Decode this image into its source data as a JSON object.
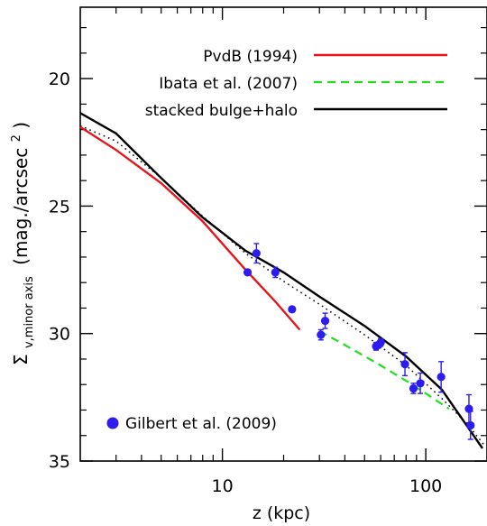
{
  "chart_data": {
    "type": "line",
    "xlabel": "z (kpc)",
    "ylabel_parts": {
      "sigma": "Σ",
      "subscript": "v,minor axis",
      "units_pre": "(mag./arcsec",
      "units_exp": "2",
      "units_post": ")"
    },
    "xscale": "log",
    "xlim": [
      2,
      200
    ],
    "ylim": [
      35,
      17.2
    ],
    "y_inverted": true,
    "x_major_ticks": [
      10,
      100
    ],
    "x_major_labels": [
      "10",
      "100"
    ],
    "x_minor_ticks": [
      2,
      3,
      4,
      5,
      6,
      7,
      8,
      9,
      20,
      30,
      40,
      50,
      60,
      70,
      80,
      90,
      200
    ],
    "y_major_ticks": [
      20,
      25,
      30,
      35
    ],
    "y_major_labels": [
      "20",
      "25",
      "30",
      "35"
    ],
    "y_minor_step": 1,
    "grid": false,
    "legend_position": "top-right",
    "series": [
      {
        "name": "PvdB (1994)",
        "style": "solid",
        "color": "#e8141c",
        "x": [
          2.0,
          3.0,
          5.0,
          8.0,
          13.0,
          18.0,
          24.0
        ],
        "y": [
          21.9,
          22.8,
          24.1,
          25.6,
          27.5,
          28.7,
          29.85
        ]
      },
      {
        "name": "Ibata et al. (2007)",
        "style": "dashed",
        "color": "#22dd22",
        "x": [
          30,
          40,
          60,
          80,
          100,
          130
        ],
        "y": [
          29.9,
          30.45,
          31.25,
          31.85,
          32.35,
          32.95
        ]
      },
      {
        "name": "stacked bulge+halo",
        "style": "solid",
        "color": "#000000",
        "x": [
          2.0,
          3.0,
          5.0,
          8.0,
          13.0,
          20.0,
          30.0,
          50.0,
          80.0,
          120.0,
          190.0
        ],
        "y": [
          21.35,
          22.15,
          23.9,
          25.45,
          26.75,
          27.6,
          28.55,
          29.7,
          30.9,
          32.2,
          34.5
        ]
      }
    ],
    "model_curve": {
      "style": "dotted",
      "color": "#000000",
      "x": [
        2.0,
        3.0,
        5.0,
        8.0,
        13.0,
        20.0,
        30.0,
        50.0,
        80.0,
        120.0,
        160.0,
        195.0
      ],
      "y": [
        21.85,
        22.45,
        23.9,
        25.4,
        26.85,
        27.95,
        28.85,
        30.05,
        31.25,
        32.55,
        33.55,
        34.4
      ]
    },
    "points": {
      "name": "Gilbert et al. (2009)",
      "color": "#2d1cf0",
      "data": [
        {
          "x": 13.3,
          "y": 27.6,
          "err": 0.0
        },
        {
          "x": 14.7,
          "y": 26.85,
          "err": 0.38
        },
        {
          "x": 18.2,
          "y": 27.6,
          "err": 0.2
        },
        {
          "x": 22.0,
          "y": 29.05,
          "err": 0.0
        },
        {
          "x": 30.5,
          "y": 30.05,
          "err": 0.2
        },
        {
          "x": 32.0,
          "y": 29.5,
          "err": 0.3
        },
        {
          "x": 57.0,
          "y": 30.5,
          "err": 0.15
        },
        {
          "x": 58.5,
          "y": 30.45,
          "err": 0.12
        },
        {
          "x": 60.0,
          "y": 30.35,
          "err": 0.15
        },
        {
          "x": 79.0,
          "y": 31.2,
          "err": 0.45
        },
        {
          "x": 87.0,
          "y": 32.15,
          "err": 0.2
        },
        {
          "x": 94.0,
          "y": 31.95,
          "err": 0.4
        },
        {
          "x": 119.0,
          "y": 31.7,
          "err": 0.6
        },
        {
          "x": 163.0,
          "y": 32.95,
          "err": 0.55
        },
        {
          "x": 166.0,
          "y": 33.6,
          "err": 0.55
        }
      ]
    }
  }
}
